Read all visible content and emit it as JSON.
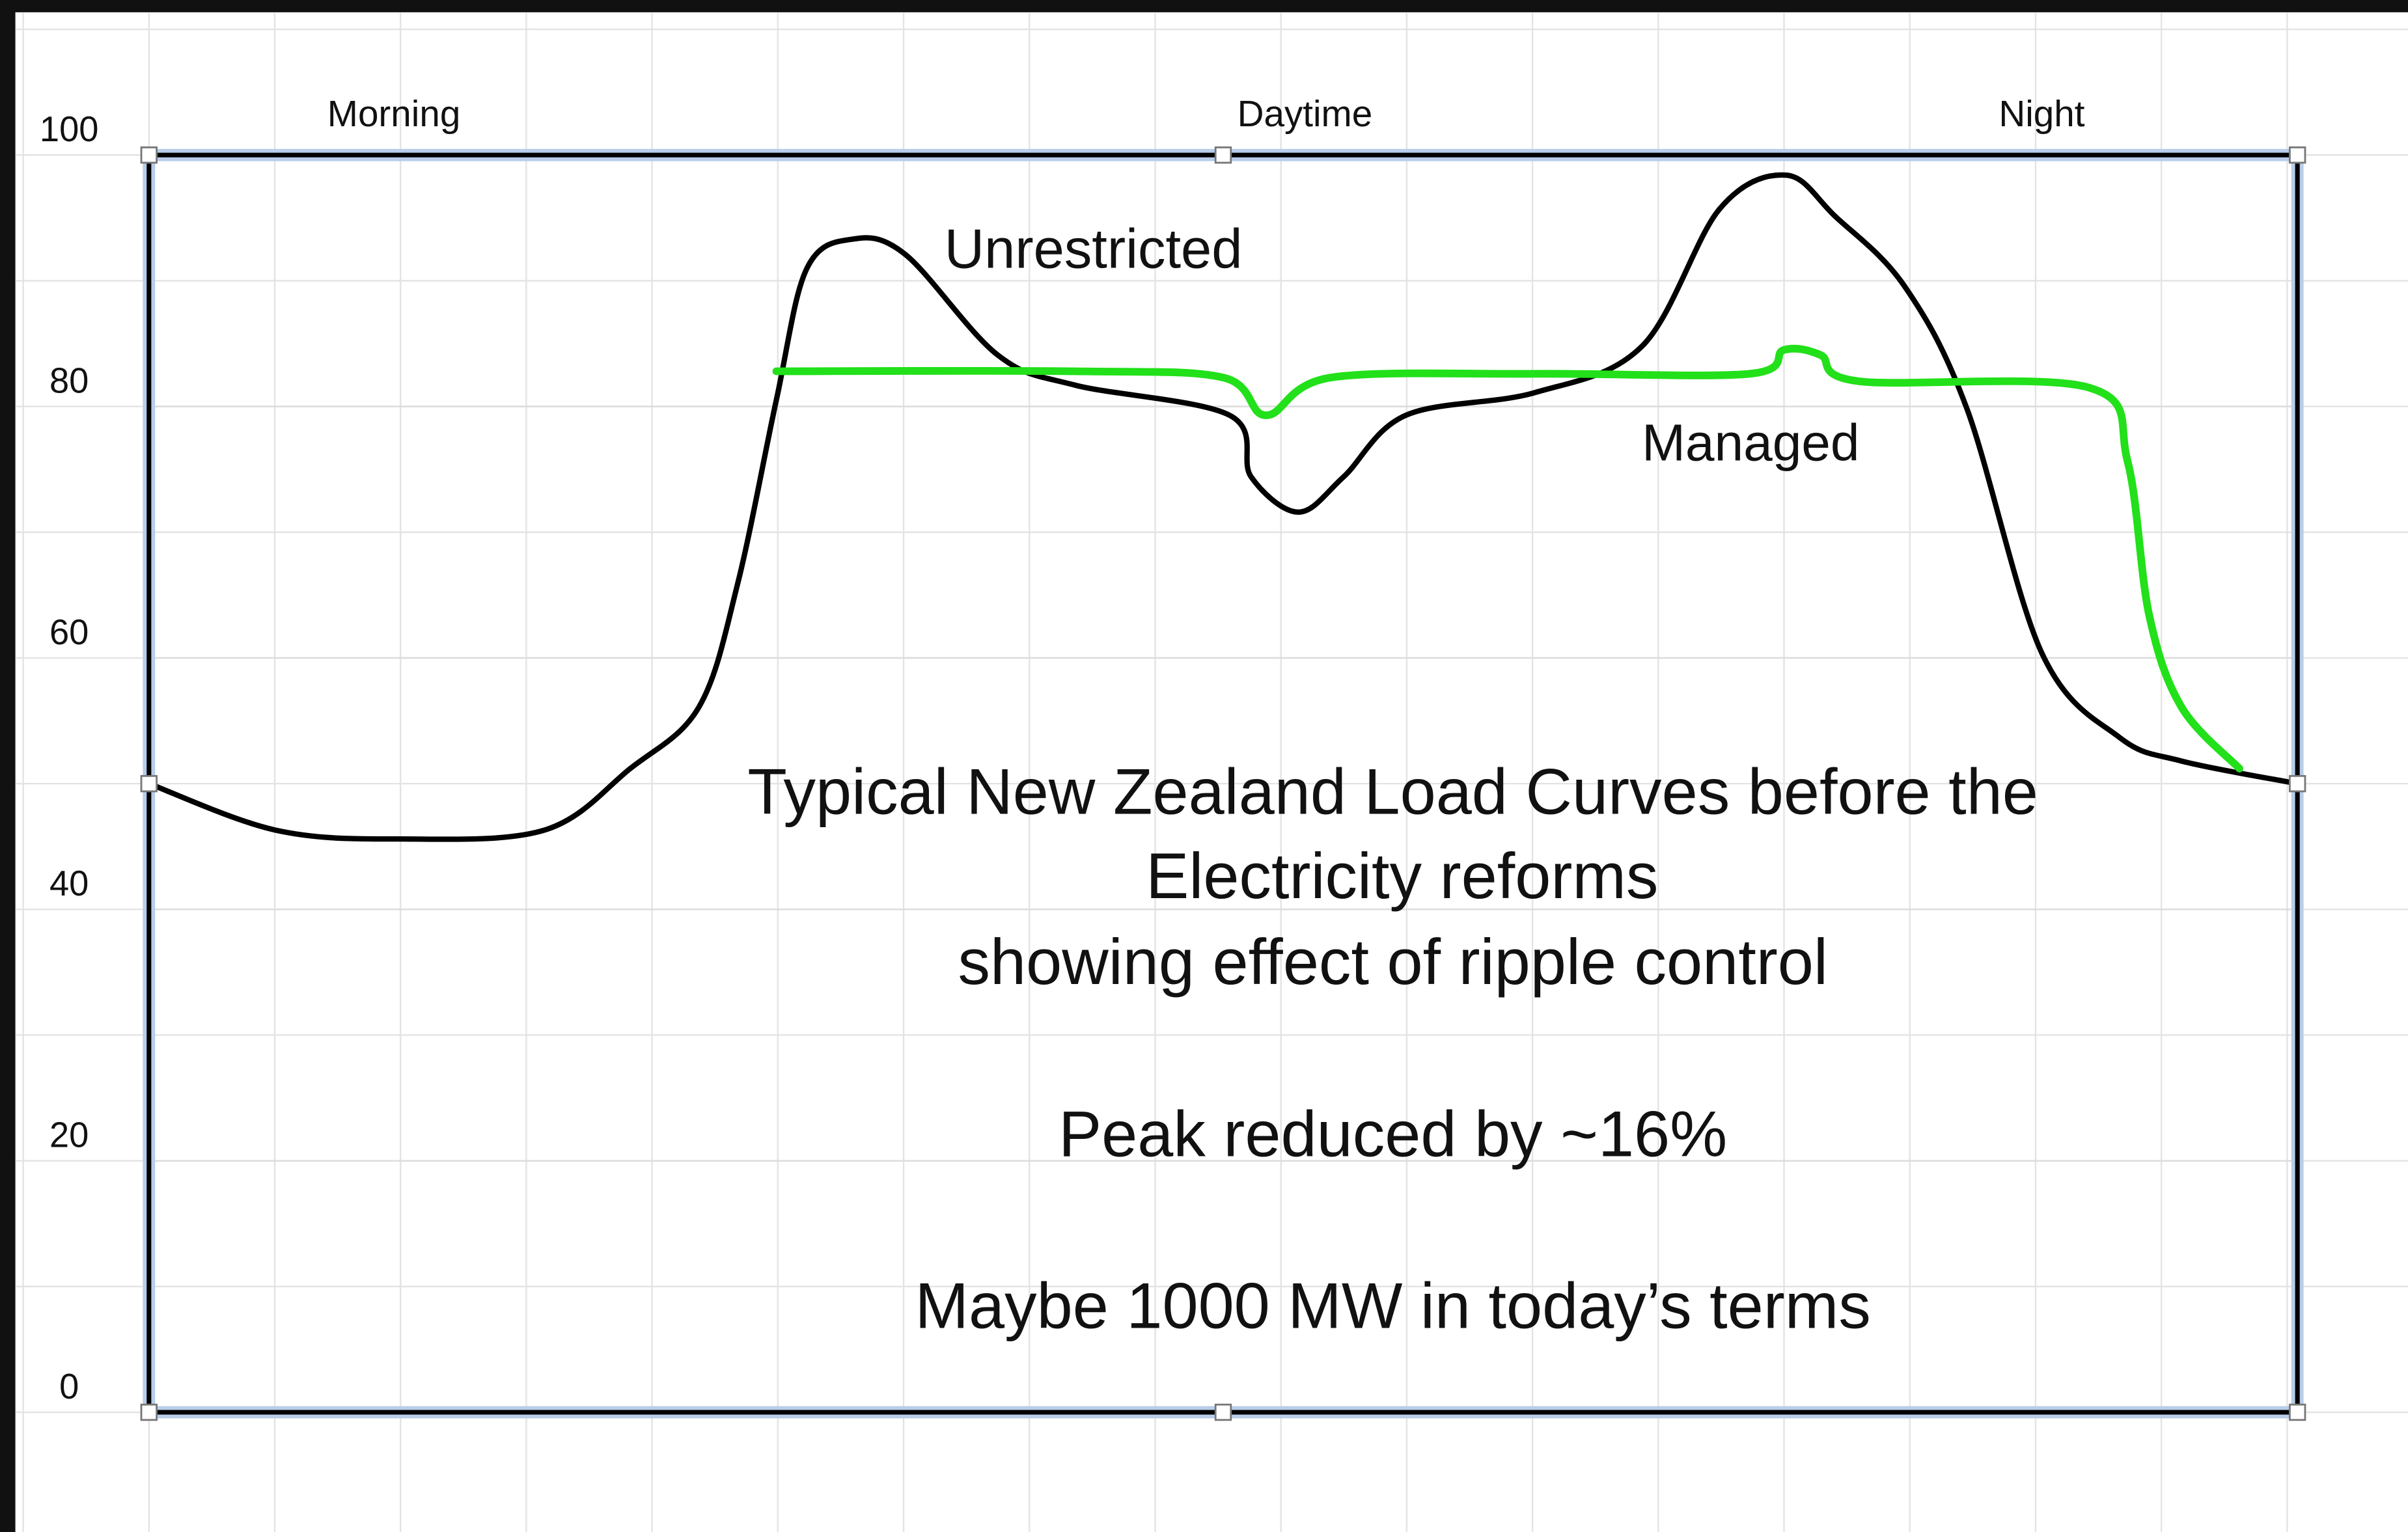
{
  "chart_data": {
    "type": "line",
    "xlim": [
      0,
      100
    ],
    "xticks": [
      {
        "value": 11.4,
        "label": "Morning"
      },
      {
        "value": 53.8,
        "label": "Daytime"
      },
      {
        "value": 88.1,
        "label": "Night"
      }
    ],
    "ylim": [
      0,
      100
    ],
    "yticks": [
      0,
      20,
      40,
      60,
      80,
      100
    ],
    "grid": true,
    "series": [
      {
        "name": "Unrestricted",
        "color": "#000000",
        "x": [
          0,
          5.9,
          11.7,
          18.4,
          22.4,
          25.6,
          27.4,
          29.2,
          30.6,
          32.7,
          35.2,
          39.5,
          43.1,
          50.3,
          51.3,
          53.5,
          55.6,
          58.5,
          64.5,
          69.5,
          73.1,
          76.2,
          78.5,
          81.7,
          84.6,
          88.1,
          91.7,
          94.6,
          100
        ],
        "values": [
          50,
          46.3,
          45.6,
          46.3,
          51.2,
          56.1,
          65.9,
          80.5,
          90.9,
          93.3,
          92.1,
          84.1,
          81.7,
          79.3,
          74.4,
          71.6,
          74.4,
          79.3,
          81.1,
          84.8,
          95.7,
          98.4,
          95.1,
          89.6,
          79.9,
          60.4,
          53.7,
          51.8,
          50
        ]
      },
      {
        "name": "Managed",
        "color": "#22e01a",
        "x": [
          29.2,
          43.1,
          50.0,
          52.0,
          55.0,
          64.5,
          74.5,
          76.1,
          77.8,
          79.6,
          90.3,
          92.1,
          93.1,
          94.6,
          97.3
        ],
        "values": [
          82.8,
          82.8,
          82.3,
          79.3,
          82.3,
          82.6,
          82.6,
          84.5,
          84.1,
          82.0,
          81.5,
          75.6,
          63.4,
          56.1,
          51.2
        ]
      }
    ],
    "annotations": [
      "Typical New Zealand Load Curves before the",
      "Electricity reforms",
      "showing effect of ripple control",
      "Peak reduced by ~16%",
      "Maybe 1000 MW in today’s terms"
    ]
  }
}
